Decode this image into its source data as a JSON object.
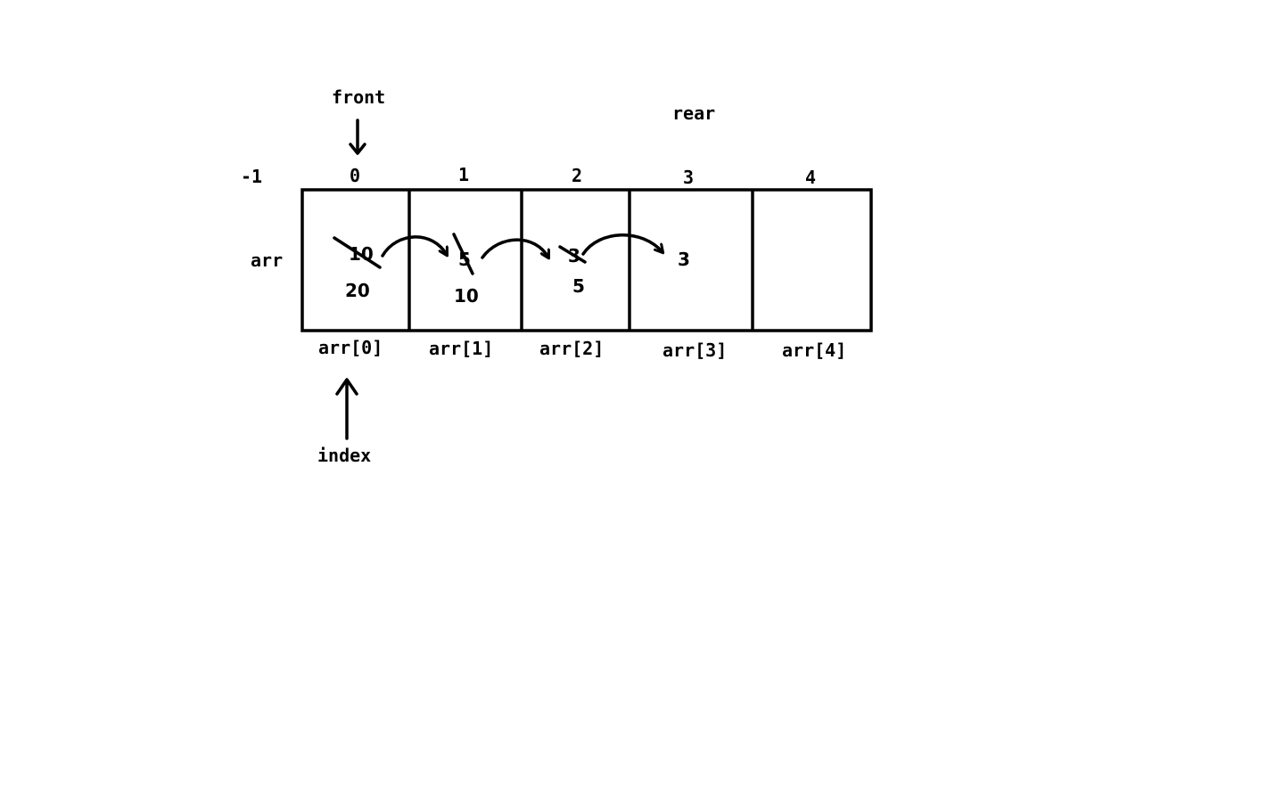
{
  "pointers": {
    "front": "front",
    "rear": "rear",
    "index": "index"
  },
  "array": {
    "name": "arr",
    "before_first_index": "-1",
    "indices": [
      "0",
      "1",
      "2",
      "3",
      "4"
    ],
    "slot_labels": [
      "arr[0]",
      "arr[1]",
      "arr[2]",
      "arr[3]",
      "arr[4]"
    ],
    "cells": [
      {
        "old": "10",
        "new": "20"
      },
      {
        "old": "5",
        "new": "10"
      },
      {
        "old": "3",
        "new": "5"
      },
      {
        "old": "",
        "new": "3"
      },
      {
        "old": "",
        "new": ""
      }
    ]
  },
  "colors": {
    "ink": "#000000",
    "background": "#ffffff"
  }
}
